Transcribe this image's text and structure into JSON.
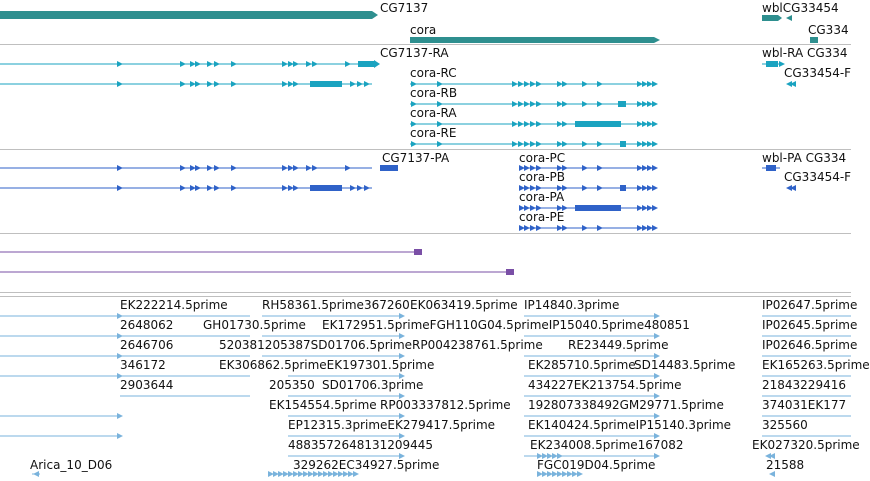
{
  "colors": {
    "gene": "#2e8f8f",
    "transcript_teal": "#1aa3c0",
    "transcript_blue": "#2f62c8",
    "purple": "#7a4fa6",
    "est": "#7ab3dc",
    "separator": "#bfbfbf"
  },
  "tracks": {
    "genes": [
      {
        "id": "CG7137",
        "label": "CG7137"
      },
      {
        "id": "cora",
        "label": "cora"
      },
      {
        "id": "wbl-cg",
        "label": "wblCG33454"
      },
      {
        "id": "cg334-a",
        "label": "CG334"
      }
    ],
    "transcripts_teal": [
      {
        "id": "CG7137-RA",
        "label": "CG7137-RA"
      },
      {
        "id": "cora-RC",
        "label": "cora-RC"
      },
      {
        "id": "cora-RB",
        "label": "cora-RB"
      },
      {
        "id": "cora-RA",
        "label": "cora-RA"
      },
      {
        "id": "cora-RE",
        "label": "cora-RE"
      },
      {
        "id": "wbl-RA",
        "label": "wbl-RA CG334"
      },
      {
        "id": "CG33454-R",
        "label": "CG33454-F"
      }
    ],
    "transcripts_blue": [
      {
        "id": "CG7137-PA",
        "label": "CG7137-PA"
      },
      {
        "id": "cora-PC",
        "label": "cora-PC"
      },
      {
        "id": "cora-PB",
        "label": "cora-PB"
      },
      {
        "id": "cora-PA",
        "label": "cora-PA"
      },
      {
        "id": "cora-PE",
        "label": "cora-PE"
      },
      {
        "id": "wbl-PA",
        "label": "wbl-PA CG334"
      },
      {
        "id": "CG33454-P",
        "label": "CG33454-F"
      }
    ],
    "est_labels": [
      "EK222214.5prime",
      "RH58361.5prime367260",
      "EK063419.5prime",
      "IP14840.3prime",
      "IP02647.5prime",
      "2648062",
      "GH01730.5prime",
      "EK172951.5primeFGH110G04.5primeIP15040.5prime480851",
      "IP02645.5prime",
      "2646706",
      "520381205387SD01706.5primeRP004238761.5prime",
      "RE23449.5prime",
      "IP02646.5prime",
      "346172",
      "EK306862.5primeEK197301.5prime",
      "EK285710.5prime",
      "SD14483.5prime",
      "EK165263.5prime",
      "2903644",
      "205350",
      "SD01706.3prime",
      "434227EK213754.5prime",
      "21843229416",
      "EK154554.5prime",
      "RP003337812.5prime",
      "192807338492GM29771.5prime",
      "374031EK177",
      "EP12315.3primeEK279417.5prime",
      "EK140424.5primeIP15140.3prime",
      "325560",
      "4883572648131209445",
      "EK234008.5prime167082",
      "EK027320.5prime",
      "Arica_10_D06",
      "329262EC34927.5prime",
      "FGC019D04.5prime",
      "21588"
    ]
  }
}
